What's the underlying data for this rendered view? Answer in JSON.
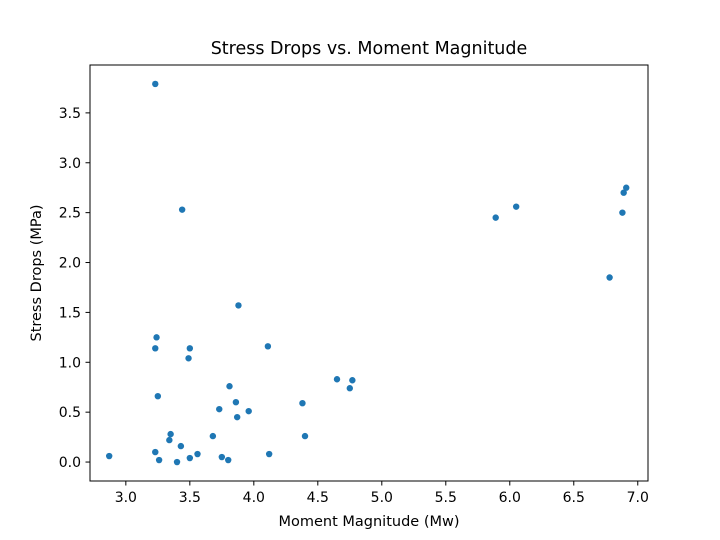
{
  "chart_data": {
    "type": "scatter",
    "title": "Stress Drops vs. Moment Magnitude",
    "xlabel": "Moment Magnitude (Mw)",
    "ylabel": "Stress Drops (MPa)",
    "xlim": [
      2.72,
      7.08
    ],
    "ylim": [
      -0.19,
      3.98
    ],
    "xticks": [
      3.0,
      3.5,
      4.0,
      4.5,
      5.0,
      5.5,
      6.0,
      6.5,
      7.0
    ],
    "xtick_labels": [
      "3.0",
      "3.5",
      "4.0",
      "4.5",
      "5.0",
      "5.5",
      "6.0",
      "6.5",
      "7.0"
    ],
    "yticks": [
      0.0,
      0.5,
      1.0,
      1.5,
      2.0,
      2.5,
      3.0,
      3.5
    ],
    "ytick_labels": [
      "0.0",
      "0.5",
      "1.0",
      "1.5",
      "2.0",
      "2.5",
      "3.0",
      "3.5"
    ],
    "grid": false,
    "marker_color": "#1f77b4",
    "points": [
      {
        "x": 2.87,
        "y": 0.06
      },
      {
        "x": 3.23,
        "y": 3.79
      },
      {
        "x": 3.24,
        "y": 1.25
      },
      {
        "x": 3.23,
        "y": 1.14
      },
      {
        "x": 3.25,
        "y": 0.66
      },
      {
        "x": 3.23,
        "y": 0.1
      },
      {
        "x": 3.26,
        "y": 0.02
      },
      {
        "x": 3.35,
        "y": 0.28
      },
      {
        "x": 3.34,
        "y": 0.22
      },
      {
        "x": 3.4,
        "y": 0.0
      },
      {
        "x": 3.43,
        "y": 0.16
      },
      {
        "x": 3.44,
        "y": 2.53
      },
      {
        "x": 3.49,
        "y": 1.04
      },
      {
        "x": 3.5,
        "y": 1.14
      },
      {
        "x": 3.5,
        "y": 0.04
      },
      {
        "x": 3.56,
        "y": 0.08
      },
      {
        "x": 3.68,
        "y": 0.26
      },
      {
        "x": 3.73,
        "y": 0.53
      },
      {
        "x": 3.75,
        "y": 0.05
      },
      {
        "x": 3.8,
        "y": 0.02
      },
      {
        "x": 3.81,
        "y": 0.76
      },
      {
        "x": 3.86,
        "y": 0.6
      },
      {
        "x": 3.87,
        "y": 0.45
      },
      {
        "x": 3.88,
        "y": 1.57
      },
      {
        "x": 3.96,
        "y": 0.51
      },
      {
        "x": 4.11,
        "y": 1.16
      },
      {
        "x": 4.12,
        "y": 0.08
      },
      {
        "x": 4.38,
        "y": 0.59
      },
      {
        "x": 4.4,
        "y": 0.26
      },
      {
        "x": 4.65,
        "y": 0.83
      },
      {
        "x": 4.75,
        "y": 0.74
      },
      {
        "x": 4.77,
        "y": 0.82
      },
      {
        "x": 5.89,
        "y": 2.45
      },
      {
        "x": 6.05,
        "y": 2.56
      },
      {
        "x": 6.78,
        "y": 1.85
      },
      {
        "x": 6.88,
        "y": 2.5
      },
      {
        "x": 6.89,
        "y": 2.7
      },
      {
        "x": 6.91,
        "y": 2.75
      }
    ]
  }
}
